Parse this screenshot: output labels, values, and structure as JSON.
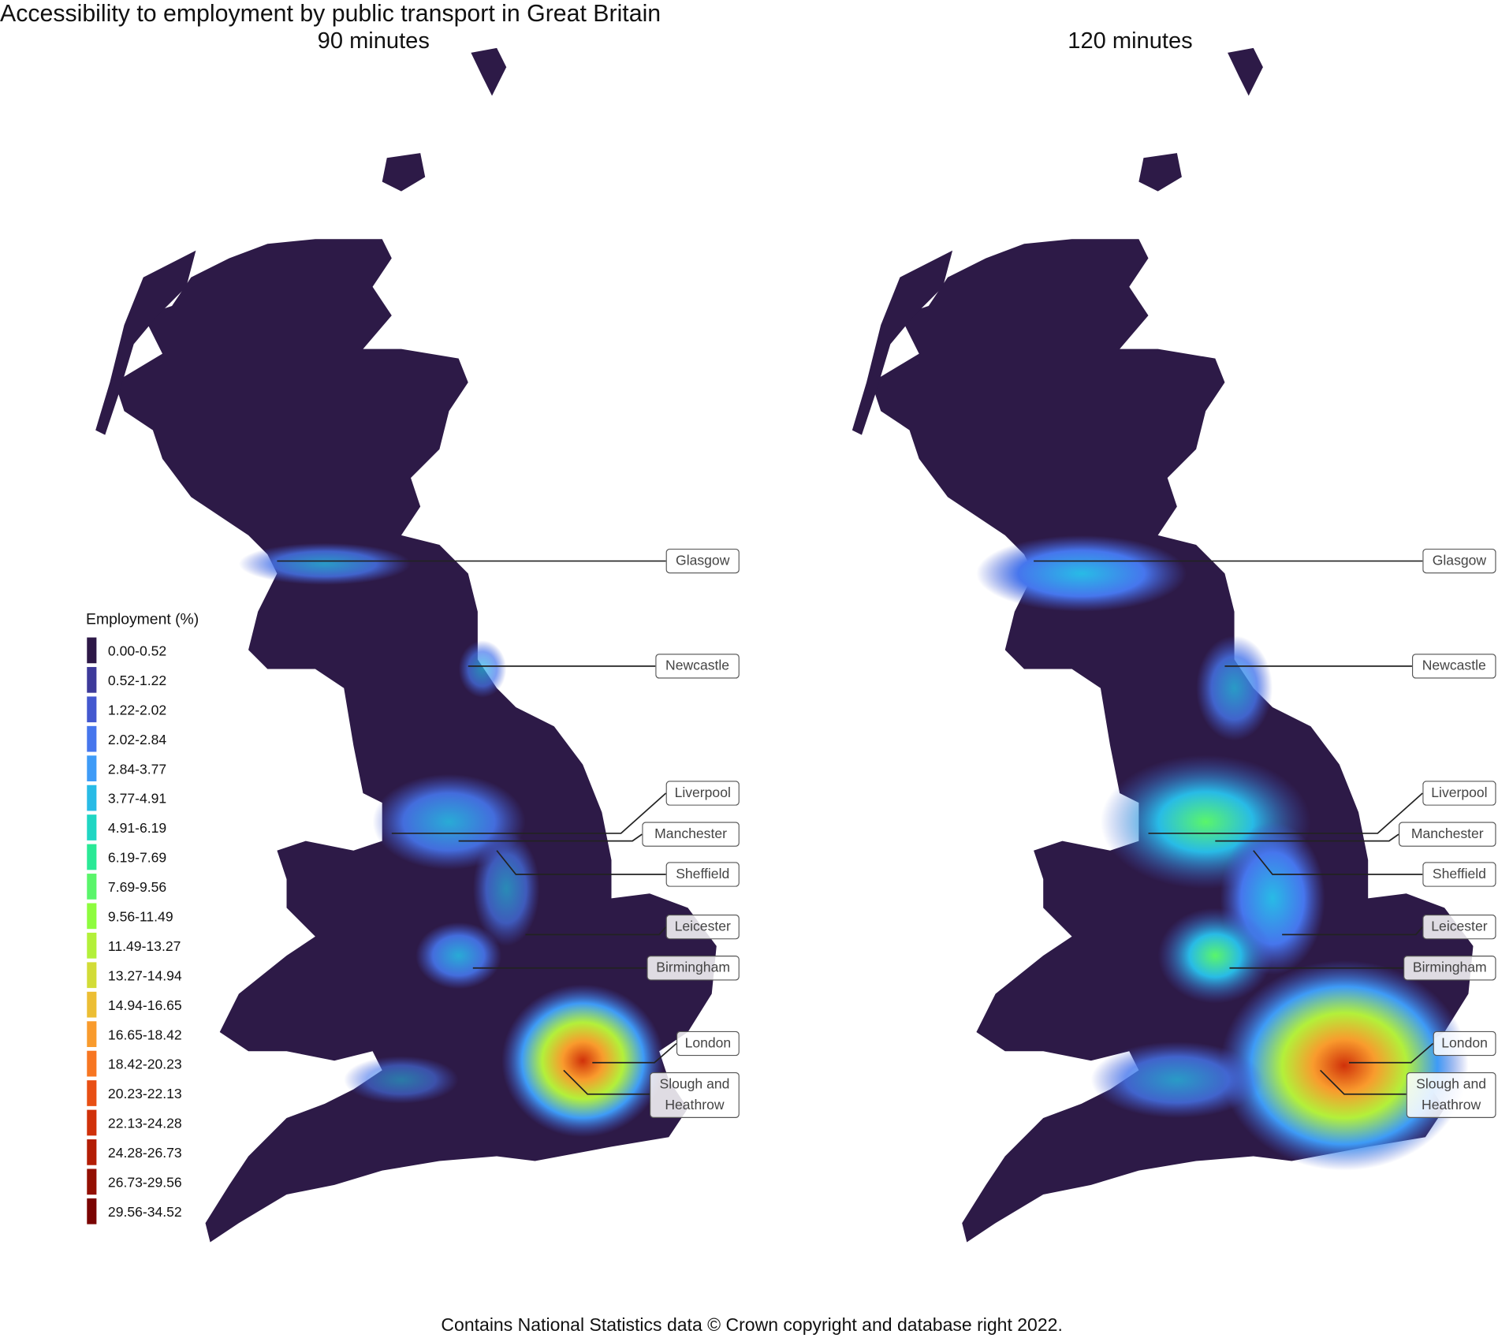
{
  "title": "Accessibility to employment by public transport in Great Britain",
  "panels": [
    {
      "title": "90 minutes"
    },
    {
      "title": "120 minutes"
    }
  ],
  "legend": {
    "title": "Employment (%)",
    "items": [
      {
        "label": "0.00-0.52",
        "color": "#2d1847"
      },
      {
        "label": "0.52-1.22",
        "color": "#3d3a9a"
      },
      {
        "label": "1.22-2.02",
        "color": "#4358cf"
      },
      {
        "label": "2.02-2.84",
        "color": "#4676ed"
      },
      {
        "label": "2.84-3.77",
        "color": "#3e9bf7"
      },
      {
        "label": "3.77-4.91",
        "color": "#28bbe6"
      },
      {
        "label": "4.91-6.19",
        "color": "#1fd6c3"
      },
      {
        "label": "6.19-7.69",
        "color": "#2ae996"
      },
      {
        "label": "7.69-9.56",
        "color": "#5af56a"
      },
      {
        "label": "9.56-11.49",
        "color": "#8efc3e"
      },
      {
        "label": "11.49-13.27",
        "color": "#b3f03a"
      },
      {
        "label": "13.27-14.94",
        "color": "#d2dc37"
      },
      {
        "label": "14.94-16.65",
        "color": "#ecbe34"
      },
      {
        "label": "16.65-18.42",
        "color": "#f99b2d"
      },
      {
        "label": "18.42-20.23",
        "color": "#f77622"
      },
      {
        "label": "20.23-22.13",
        "color": "#e84f14"
      },
      {
        "label": "22.13-24.28",
        "color": "#d0310a"
      },
      {
        "label": "24.28-26.73",
        "color": "#b31d05"
      },
      {
        "label": "26.73-29.56",
        "color": "#930f02"
      },
      {
        "label": "29.56-34.52",
        "color": "#7a0402"
      }
    ]
  },
  "cities": [
    "Glasgow",
    "Newcastle",
    "Liverpool",
    "Manchester",
    "Sheffield",
    "Leicester",
    "Birmingham",
    "London",
    "Slough and Heathrow"
  ],
  "caption": "Contains National Statistics data © Crown copyright and database right 2022."
}
